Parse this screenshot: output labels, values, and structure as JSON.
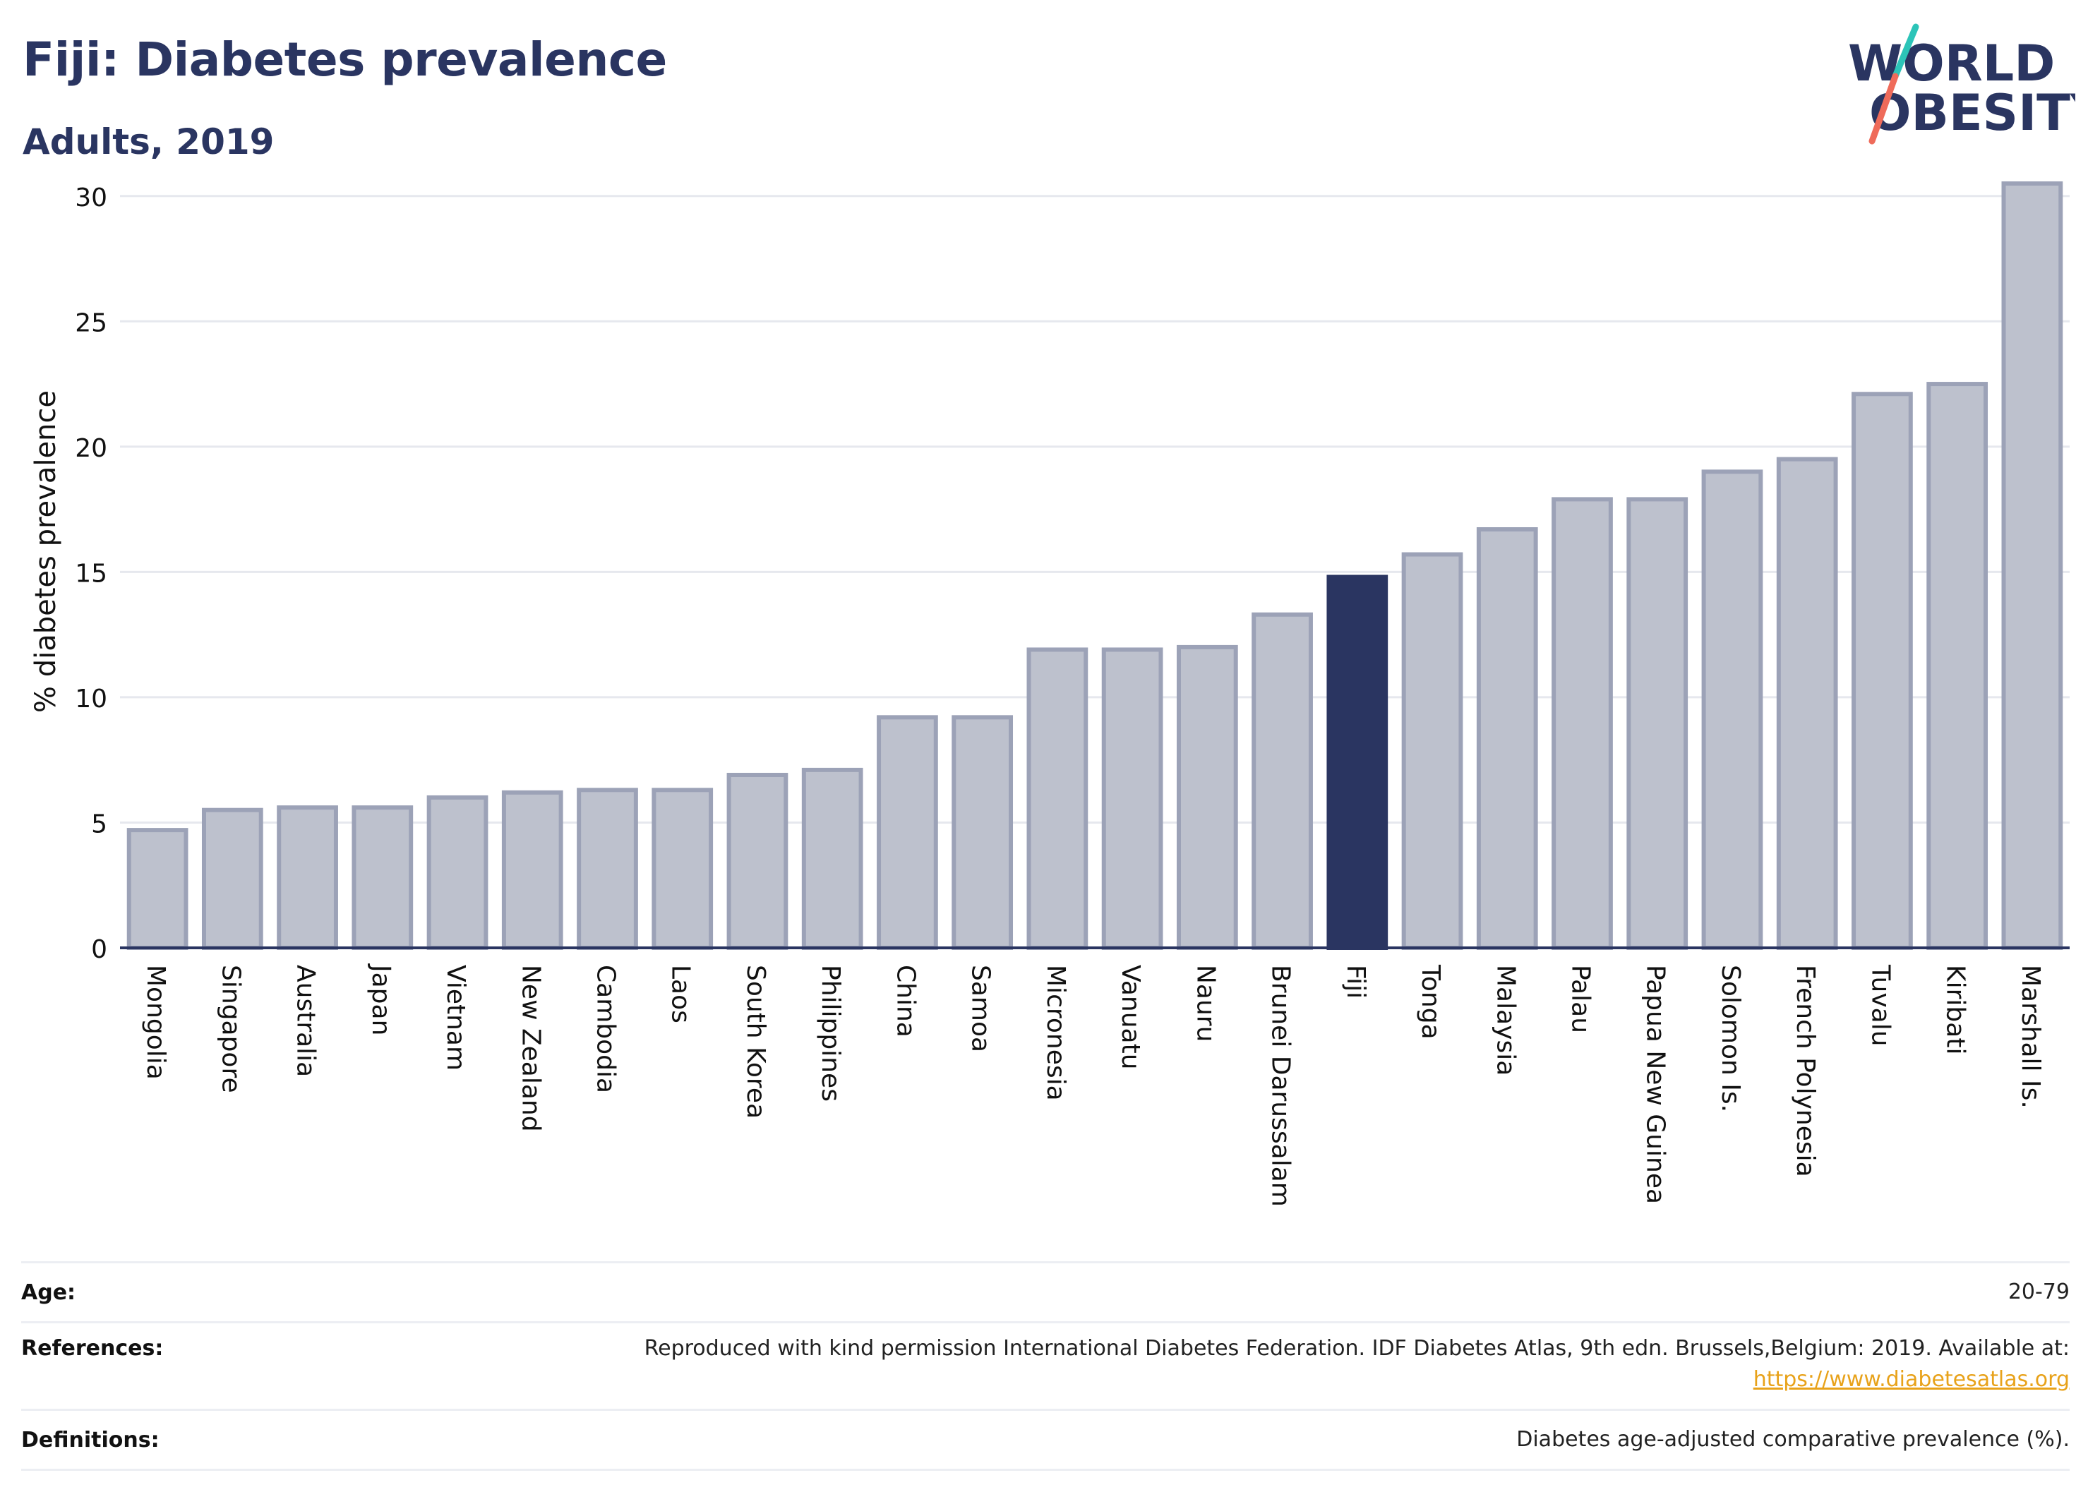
{
  "header": {
    "title": "Fiji: Diabetes prevalence",
    "subtitle": "Adults, 2019"
  },
  "logo": {
    "line1": "WORLD",
    "line2": "OBESITY"
  },
  "colors": {
    "highlight_bar": "#2a3561",
    "default_bar": "#bdc1cd",
    "default_bar_border": "#9ca2b7",
    "text": "#2a3561",
    "link": "#e8a21a",
    "logo_teal": "#2cc4b8",
    "logo_coral": "#ef6b5a"
  },
  "chart_data": {
    "type": "bar",
    "ylabel": "% diabetes prevalence",
    "ylim": [
      0,
      30.5
    ],
    "yticks": [
      0,
      5,
      10,
      15,
      20,
      25,
      30
    ],
    "grid": true,
    "highlight": "Fiji",
    "categories": [
      "Mongolia",
      "Singapore",
      "Australia",
      "Japan",
      "Vietnam",
      "New Zealand",
      "Cambodia",
      "Laos",
      "South Korea",
      "Philippines",
      "China",
      "Samoa",
      "Micronesia",
      "Vanuatu",
      "Nauru",
      "Brunei Darussalam",
      "Fiji",
      "Tonga",
      "Malaysia",
      "Palau",
      "Papua New Guinea",
      "Solomon Is.",
      "French Polynesia",
      "Tuvalu",
      "Kiribati",
      "Marshall Is."
    ],
    "values": [
      4.7,
      5.5,
      5.6,
      5.6,
      6.0,
      6.2,
      6.3,
      6.3,
      6.9,
      7.1,
      9.2,
      9.2,
      11.9,
      11.9,
      12.0,
      13.3,
      14.8,
      15.7,
      16.7,
      17.9,
      17.9,
      19.0,
      19.5,
      22.1,
      22.5,
      30.5
    ]
  },
  "info": {
    "rows": [
      {
        "label": "Age:",
        "value": "20-79"
      },
      {
        "label": "References:",
        "value": "Reproduced with kind permission International Diabetes Federation. IDF Diabetes Atlas, 9th edn. Brussels,Belgium: 2019. Available at:",
        "link": "https://www.diabetesatlas.org"
      },
      {
        "label": "Definitions:",
        "value": "Diabetes age-adjusted comparative prevalence (%)."
      }
    ]
  }
}
